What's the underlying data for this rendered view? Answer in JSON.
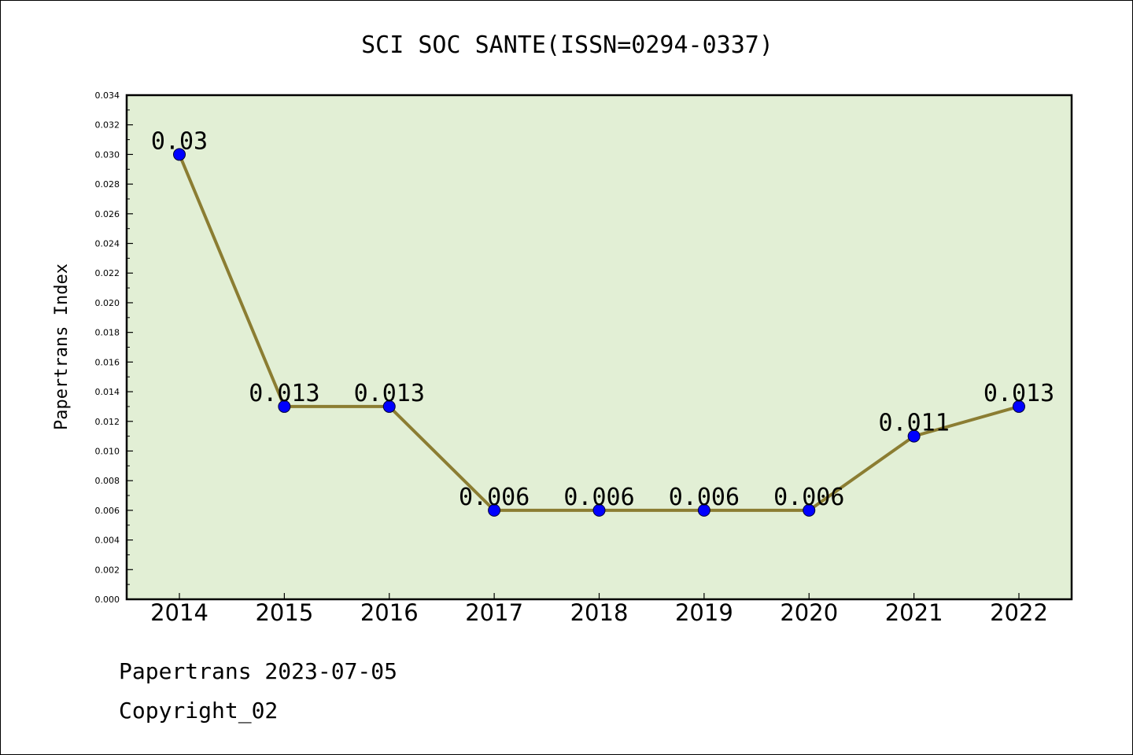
{
  "chart_data": {
    "type": "line",
    "title": "SCI SOC SANTE(ISSN=0294-0337)",
    "xlabel": "",
    "ylabel": "Papertrans Index",
    "categories": [
      "2014",
      "2015",
      "2016",
      "2017",
      "2018",
      "2019",
      "2020",
      "2021",
      "2022"
    ],
    "series": [
      {
        "values": [
          0.03,
          0.013,
          0.013,
          0.006,
          0.006,
          0.006,
          0.006,
          0.011,
          0.013
        ],
        "data_labels": [
          "0.03",
          "0.013",
          "0.013",
          "0.006",
          "0.006",
          "0.006",
          "0.006",
          "0.011",
          "0.013"
        ]
      }
    ],
    "ylim": [
      0,
      0.034
    ],
    "yticks": [
      "0.000",
      "0.002",
      "0.004",
      "0.006",
      "0.008",
      "0.010",
      "0.012",
      "0.014",
      "0.016",
      "0.018",
      "0.020",
      "0.022",
      "0.024",
      "0.026",
      "0.028",
      "0.030",
      "0.032",
      "0.034"
    ],
    "grid": false,
    "legend": "none",
    "colors": {
      "plot_background": "#e2efd5",
      "line": "#8b7d32",
      "marker": "#0000ff"
    }
  },
  "footer": {
    "line1": "Papertrans 2023-07-05",
    "line2": "Copyright_02"
  }
}
